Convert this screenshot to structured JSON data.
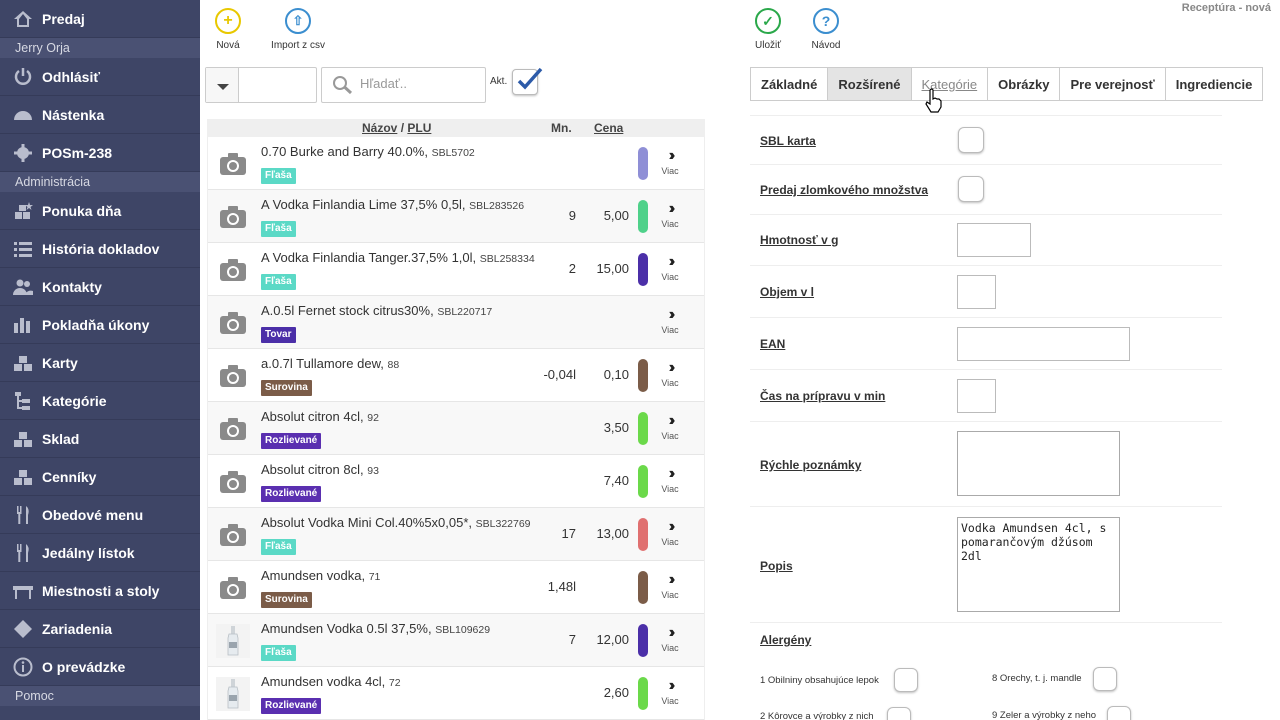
{
  "sidebar": {
    "top_item": "Predaj",
    "user": "Jerry Orja",
    "logout": "Odhlásiť",
    "dashboard": "Nástenka",
    "device": "POSm-238",
    "admin_section": "Administrácia",
    "items": [
      {
        "label": "Ponuka dňa",
        "icon": "star-boxes-icon"
      },
      {
        "label": "História dokladov",
        "icon": "list-icon"
      },
      {
        "label": "Kontakty",
        "icon": "people-icon"
      },
      {
        "label": "Pokladňa úkony",
        "icon": "bar-chart-icon"
      },
      {
        "label": "Karty",
        "icon": "boxes-icon"
      },
      {
        "label": "Kategórie",
        "icon": "sitemap-icon"
      },
      {
        "label": "Sklad",
        "icon": "boxes-icon"
      },
      {
        "label": "Cenníky",
        "icon": "boxes-icon"
      },
      {
        "label": "Obedové menu",
        "icon": "cutlery-icon"
      },
      {
        "label": "Jedálny lístok",
        "icon": "cutlery-icon"
      },
      {
        "label": "Miestnosti a stoly",
        "icon": "table-icon"
      },
      {
        "label": "Zariadenia",
        "icon": "diamond-icon"
      },
      {
        "label": "O prevádzke",
        "icon": "info-icon"
      }
    ],
    "help_section": "Pomoc"
  },
  "toolbar": {
    "new_label": "Nová",
    "import_label": "Import z csv",
    "save_label": "Uložiť",
    "guide_label": "Návod"
  },
  "page_title": "Receptúra - nová",
  "filter": {
    "search_placeholder": "Hľadať..",
    "akt_label": "Akt."
  },
  "list": {
    "header_name": "Názov",
    "header_sep": "/",
    "header_plu": "PLU",
    "header_qty": "Mn.",
    "header_price": "Cena",
    "more_label": "Viac",
    "rows": [
      {
        "name": "0.70 Burke and Barry 40.0%,",
        "plu": "SBL5702",
        "badge": "Fľaša",
        "badge_color": "#5bd9c6",
        "qty": "",
        "price": "",
        "pill": "#8f8fd6",
        "thumb": "camera"
      },
      {
        "name": "A Vodka Finlandia Lime 37,5% 0,5l,",
        "plu": "SBL283526",
        "badge": "Fľaša",
        "badge_color": "#5bd9c6",
        "qty": "9",
        "price": "5,00",
        "pill": "#4fd18a",
        "thumb": "camera"
      },
      {
        "name": "A Vodka Finlandia Tanger.37,5% 1,0l,",
        "plu": "SBL258334",
        "badge": "Fľaša",
        "badge_color": "#5bd9c6",
        "qty": "2",
        "price": "15,00",
        "pill": "#4b2fa8",
        "thumb": "camera"
      },
      {
        "name": "A.0.5l Fernet stock citrus30%,",
        "plu": "SBL220717",
        "badge": "Tovar",
        "badge_color": "#4b2fa8",
        "qty": "",
        "price": "",
        "pill": "",
        "thumb": "camera"
      },
      {
        "name": "a.0.7l Tullamore dew,",
        "plu": "88",
        "badge": "Surovina",
        "badge_color": "#7b5c48",
        "qty": "-0,04l",
        "price": "0,10",
        "pill": "#7b5c48",
        "thumb": "camera"
      },
      {
        "name": "Absolut citron 4cl,",
        "plu": "92",
        "badge": "Rozlievané",
        "badge_color": "#5a2fb0",
        "qty": "",
        "price": "3,50",
        "pill": "#6bd94a",
        "thumb": "camera"
      },
      {
        "name": "Absolut citron 8cl,",
        "plu": "93",
        "badge": "Rozlievané",
        "badge_color": "#5a2fb0",
        "qty": "",
        "price": "7,40",
        "pill": "#6bd94a",
        "thumb": "camera"
      },
      {
        "name": "Absolut Vodka Mini Col.40%5x0,05*,",
        "plu": "SBL322769",
        "badge": "Fľaša",
        "badge_color": "#5bd9c6",
        "qty": "17",
        "price": "13,00",
        "pill": "#e07070",
        "thumb": "camera"
      },
      {
        "name": "Amundsen vodka,",
        "plu": "71",
        "badge": "Surovina",
        "badge_color": "#7b5c48",
        "qty": "1,48l",
        "price": "",
        "pill": "#7b5c48",
        "thumb": "camera"
      },
      {
        "name": "Amundsen Vodka 0.5l 37,5%,",
        "plu": "SBL109629",
        "badge": "Fľaša",
        "badge_color": "#5bd9c6",
        "qty": "7",
        "price": "12,00",
        "pill": "#4b2fa8",
        "thumb": "bottle"
      },
      {
        "name": "Amundsen vodka 4cl,",
        "plu": "72",
        "badge": "Rozlievané",
        "badge_color": "#5a2fb0",
        "qty": "",
        "price": "2,60",
        "pill": "#6bd94a",
        "thumb": "bottle"
      }
    ]
  },
  "tabs": [
    "Základné",
    "Rozšírené",
    "Kategórie",
    "Obrázky",
    "Pre verejnosť",
    "Ingrediencie"
  ],
  "form": {
    "sbl_label": "SBL karta",
    "fraction_label": "Predaj zlomkového množstva",
    "weight_label": "Hmotnosť v g",
    "volume_label": "Objem v l",
    "ean_label": "EAN",
    "prep_label": "Čas na prípravu v min",
    "notes_label": "Rýchle poznámky",
    "desc_label": "Popis",
    "desc_value": "Vodka Amundsen 4cl, s pomarančovým džúsom 2dl",
    "allergens_label": "Alergény",
    "allergens": [
      "1 Obilniny obsahujúce lepok",
      "8 Orechy, t. j. mandle",
      "2 Kôrovce a výrobky z nich",
      "9 Zeler a výrobky z neho"
    ]
  },
  "colors": {
    "sidebar_bg": "#3e4566",
    "section_bg": "#4a5173",
    "add_yellow": "#e8c800",
    "import_blue": "#3b8ecf",
    "save_green": "#2aa84a",
    "help_blue": "#3b8ecf"
  }
}
